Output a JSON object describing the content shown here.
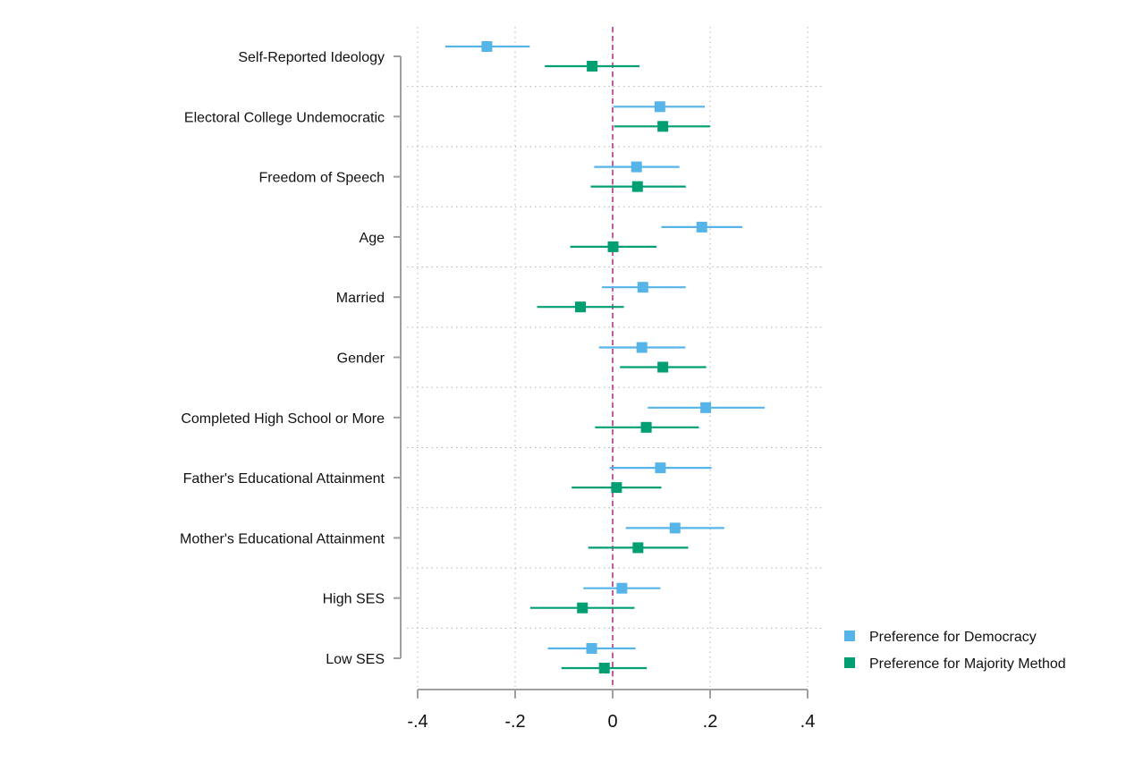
{
  "chart_data": {
    "type": "coefficient-plot",
    "orientation": "horizontal",
    "title": "",
    "xlabel": "",
    "ylabel": "",
    "xlim": [
      -0.4,
      0.4
    ],
    "xticks": [
      -0.4,
      -0.2,
      0,
      0.2,
      0.4
    ],
    "xtick_labels": [
      "-.4",
      "-.2",
      "0",
      ".2",
      ".4"
    ],
    "reference_line": 0,
    "grid": true,
    "legend_position": "bottom-right",
    "categories": [
      "Self-Reported Ideology",
      "Electoral College Undemocratic",
      "Freedom of Speech",
      "Age",
      "Married",
      "Gender",
      "Completed High School or More",
      "Father's Educational Attainment",
      "Mother's Educational Attainment",
      "High SES",
      "Low SES"
    ],
    "series": [
      {
        "name": "Preference for Democracy",
        "color": "#56b4e9",
        "estimates": [
          -0.258,
          0.097,
          0.049,
          0.183,
          0.062,
          0.06,
          0.191,
          0.098,
          0.128,
          0.019,
          -0.043
        ],
        "ci_low": [
          -0.343,
          0.002,
          -0.038,
          0.1,
          -0.022,
          -0.028,
          0.072,
          -0.006,
          0.027,
          -0.06,
          -0.133
        ],
        "ci_high": [
          -0.17,
          0.189,
          0.137,
          0.266,
          0.15,
          0.149,
          0.312,
          0.203,
          0.229,
          0.098,
          0.047
        ]
      },
      {
        "name": "Preference for Majority Method",
        "color": "#009e73",
        "estimates": [
          -0.042,
          0.103,
          0.051,
          0.001,
          -0.066,
          0.103,
          0.069,
          0.008,
          0.052,
          -0.062,
          -0.017
        ],
        "ci_low": [
          -0.139,
          0.003,
          -0.045,
          -0.087,
          -0.155,
          0.015,
          -0.036,
          -0.084,
          -0.05,
          -0.169,
          -0.105
        ],
        "ci_high": [
          0.055,
          0.2,
          0.15,
          0.09,
          0.023,
          0.192,
          0.177,
          0.1,
          0.155,
          0.045,
          0.07
        ]
      }
    ],
    "colors": {
      "reference_line": "#c45ca2",
      "axis": "#a0a0a0",
      "grid": "#b4b4b4"
    }
  }
}
